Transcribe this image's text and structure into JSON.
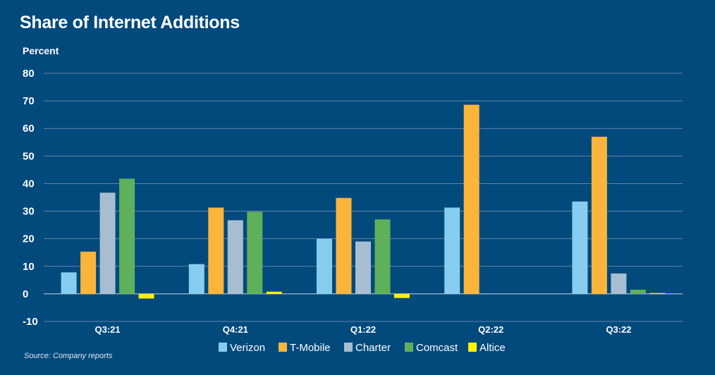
{
  "title": "Share of Internet Additions",
  "unit_label": "Percent",
  "source": "Source: Company reports",
  "chart_data": {
    "type": "bar",
    "title": "Share of Internet Additions",
    "ylabel": "Percent",
    "xlabel": "",
    "ylim": [
      -10,
      80
    ],
    "yticks": [
      -10,
      0,
      10,
      20,
      30,
      40,
      50,
      60,
      70,
      80
    ],
    "grid": true,
    "legend_position": "bottom",
    "categories": [
      "Q3:21",
      "Q4:21",
      "Q1:22",
      "Q2:22",
      "Q3:22"
    ],
    "series": [
      {
        "name": "Verizon",
        "color": "#86cdf0",
        "values": [
          7.8,
          10.8,
          20.0,
          31.3,
          33.5
        ]
      },
      {
        "name": "T-Mobile",
        "color": "#fbb53b",
        "values": [
          15.3,
          31.3,
          34.8,
          68.6,
          57.0
        ]
      },
      {
        "name": "Charter",
        "color": "#a7bdd0",
        "values": [
          36.7,
          26.7,
          19.0,
          null,
          7.4
        ]
      },
      {
        "name": "Comcast",
        "color": "#5fb05b",
        "values": [
          41.8,
          29.8,
          27.0,
          null,
          1.5
        ]
      },
      {
        "name": "Altice",
        "color": "#fff100",
        "values": [
          -1.7,
          0.8,
          -1.5,
          null,
          0.3
        ]
      }
    ]
  }
}
